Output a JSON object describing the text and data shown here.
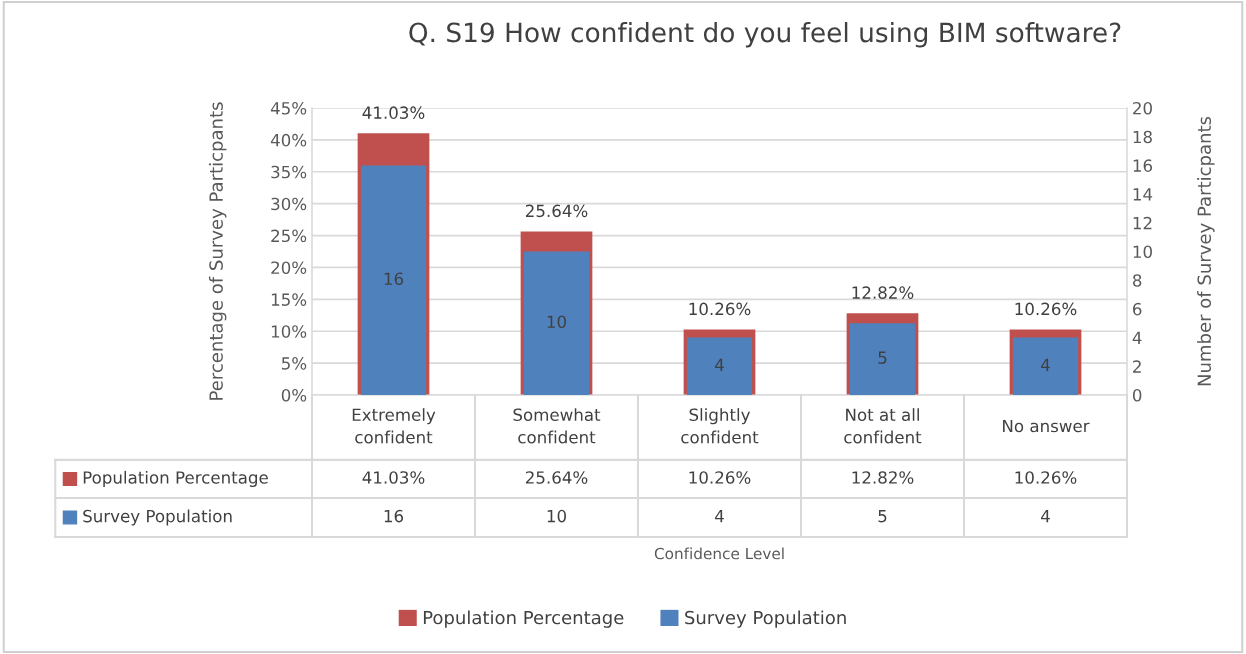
{
  "chart_data": {
    "type": "bar",
    "title": "Q. S19 How confident do you feel using BIM software?",
    "annotations": [
      "Confidence Level"
    ],
    "ylabel": "Percentage of Survey Particpants",
    "y2label": "Number of Survey Particpants",
    "categories": [
      "Extremely confident",
      "Somewhat confident",
      "Slightly confident",
      "Not at all confident",
      "No answer"
    ],
    "series": [
      {
        "name": "Population Percentage",
        "color": "#c0504d",
        "values": [
          41.03,
          25.64,
          10.26,
          12.82,
          10.26
        ],
        "value_labels": [
          "41.03%",
          "25.64%",
          "10.26%",
          "12.82%",
          "10.26%"
        ]
      },
      {
        "name": "Survey Population",
        "color": "#4f81bd",
        "values": [
          16,
          10,
          4,
          5,
          4
        ],
        "axis": "y2",
        "value_labels": [
          "16",
          "10",
          "4",
          "5",
          "4"
        ]
      }
    ],
    "ylim": [
      0,
      45
    ],
    "yticks": [
      {
        "value": 0,
        "label": "0%"
      },
      {
        "value": 5,
        "label": "5%"
      },
      {
        "value": 10,
        "label": "10%"
      },
      {
        "value": 15,
        "label": "15%"
      },
      {
        "value": 20,
        "label": "20%"
      },
      {
        "value": 25,
        "label": "25%"
      },
      {
        "value": 30,
        "label": "30%"
      },
      {
        "value": 35,
        "label": "35%"
      },
      {
        "value": 40,
        "label": "40%"
      },
      {
        "value": 45,
        "label": "45%"
      }
    ],
    "y2lim": [
      0,
      20
    ],
    "y2ticks": [
      0,
      2,
      4,
      6,
      8,
      10,
      12,
      14,
      16,
      18,
      20
    ],
    "grid": "y",
    "legend": "bottom"
  }
}
